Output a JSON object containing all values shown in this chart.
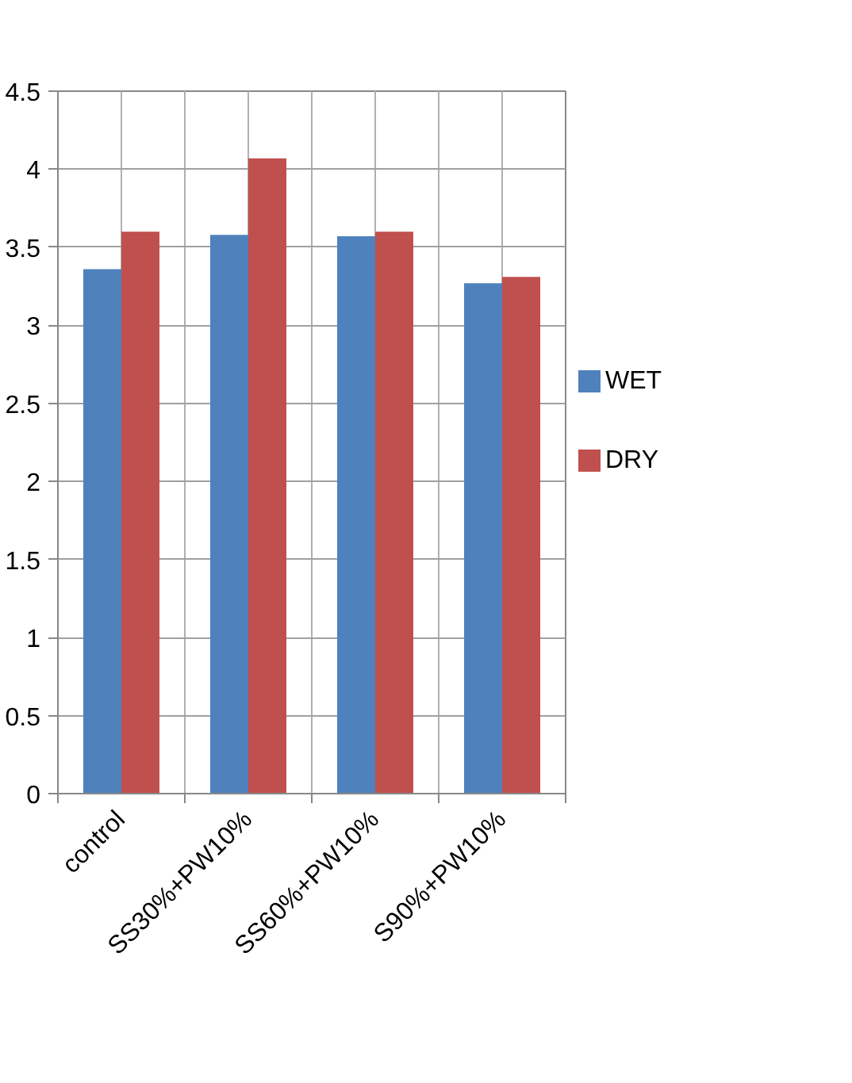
{
  "chart_data": {
    "type": "bar",
    "categories": [
      "control",
      "SS30%+PW10%",
      "SS60%+PW10%",
      "S90%+PW10%"
    ],
    "series": [
      {
        "name": "WET",
        "color": "#4f81bd",
        "values": [
          3.36,
          3.58,
          3.57,
          3.27
        ]
      },
      {
        "name": "DRY",
        "color": "#c0504d",
        "values": [
          3.6,
          4.07,
          3.6,
          3.31
        ]
      }
    ],
    "ylim": [
      0,
      4.5
    ],
    "yticks": [
      0,
      0.5,
      1,
      1.5,
      2,
      2.5,
      3,
      3.5,
      4,
      4.5
    ],
    "grid": true,
    "legend": "right"
  }
}
